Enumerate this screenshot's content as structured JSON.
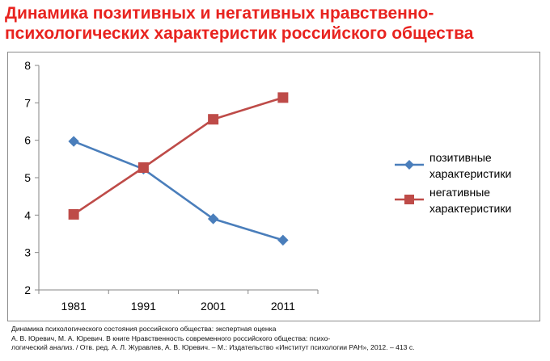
{
  "title": {
    "line1": "Динамика          позитивных          и          негативных          нравственно-",
    "line2": "психологических  характеристик российского общества"
  },
  "chart_data": {
    "type": "line",
    "title": "Динамика позитивных и негативных нравственно-психологических характеристик российского общества",
    "categories": [
      "1981",
      "1991",
      "2001",
      "2011"
    ],
    "series": [
      {
        "name": "позитивные характеристики",
        "legend_lines": [
          "позитивные",
          "характеристики"
        ],
        "values": [
          5.97,
          5.23,
          3.9,
          3.33
        ],
        "color": "#4a7ebb",
        "marker": "diamond"
      },
      {
        "name": "негативные характеристики",
        "legend_lines": [
          "негативные",
          "характеристики"
        ],
        "values": [
          4.02,
          5.27,
          6.56,
          7.14
        ],
        "color": "#be4b48",
        "marker": "square"
      }
    ],
    "ylim": [
      2,
      8
    ],
    "yticks": [
      2,
      3,
      4,
      5,
      6,
      7,
      8
    ],
    "xlabel": "",
    "ylabel": "",
    "grid": false,
    "legend_position": "right"
  },
  "source": {
    "lines": [
      "Динамика психологического состояния российского общества: экспертная оценка",
      "А. В. Юревич, М. А. Юревич. В  книге  Нравственность современного российского общества: психо-",
      "логический анализ. / Отв. ред. А. Л. Журавлев, А. В. Юревич. – М.: Издательство «Институт психологии РАН», 2012. – 413 с."
    ]
  }
}
